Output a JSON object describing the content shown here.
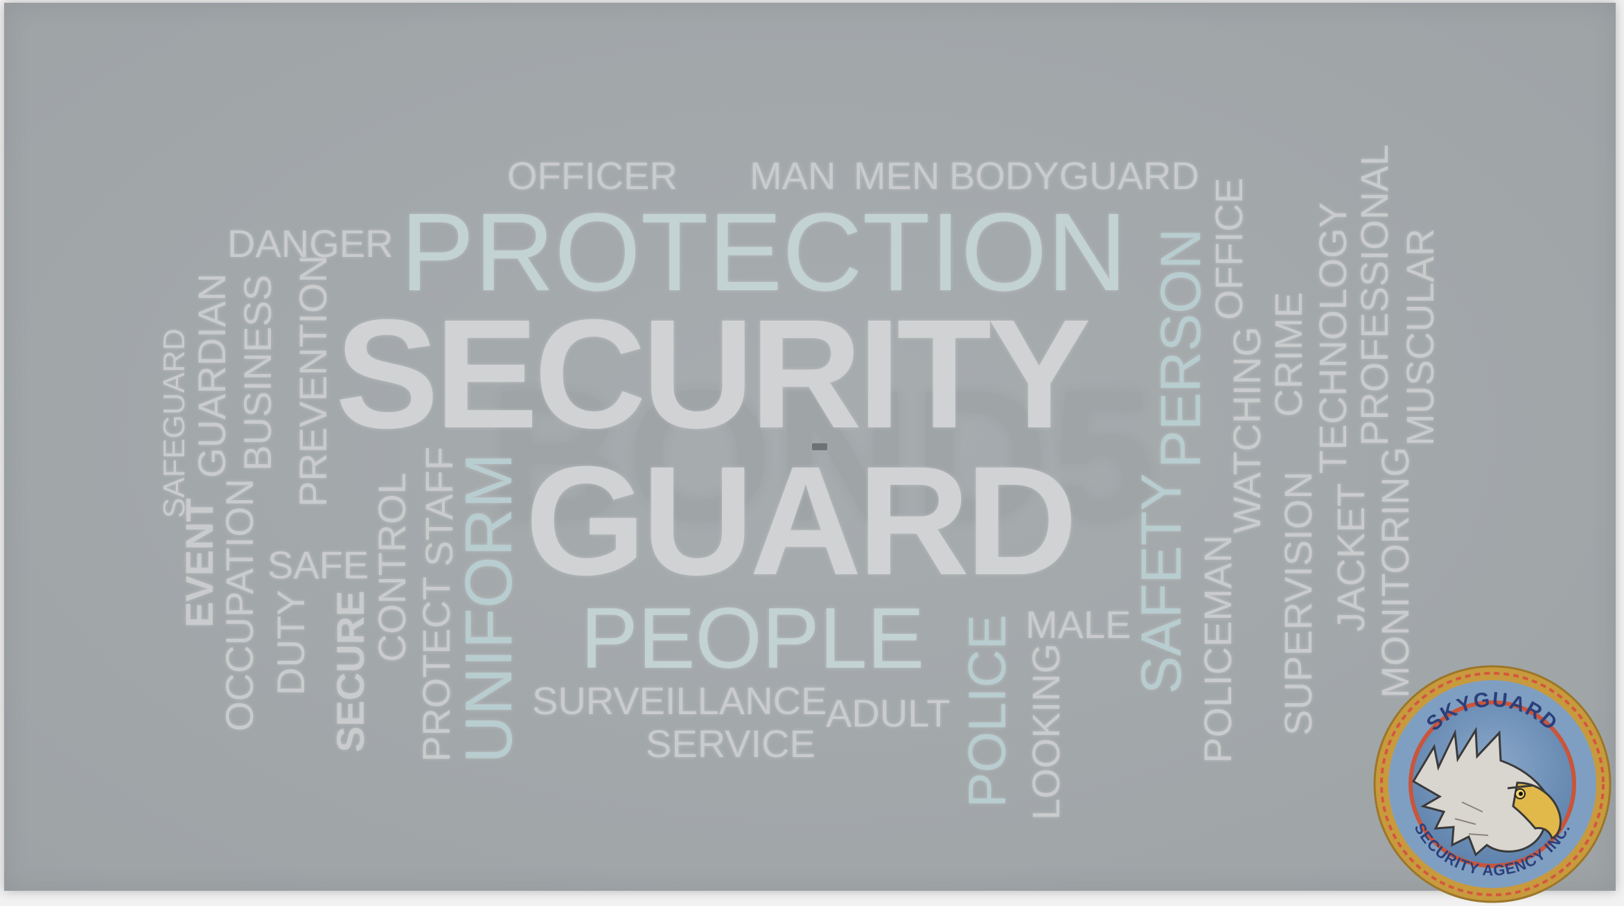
{
  "word_cloud": {
    "background_word": "BOND5",
    "words": {
      "officer": "OFFICER",
      "man": "MAN",
      "men": "MEN",
      "bodyguard": "BODYGUARD",
      "danger": "DANGER",
      "protection": "PROTECTION",
      "security": "SECURITY",
      "guard": "GUARD",
      "person": "PERSON",
      "office": "OFFICE",
      "crime": "CRIME",
      "technology": "TECHNOLOGY",
      "professional": "PROFESSIONAL",
      "muscular": "MUSCULAR",
      "watching": "WATCHING",
      "safeguard": "SAFEGUARD",
      "guardian": "GUARDIAN",
      "business": "BUSINESS",
      "prevention": "PREVENTION",
      "event": "EVENT",
      "occupation": "OCCUPATION",
      "safe": "SAFE",
      "duty": "DUTY",
      "secure": "SECURE",
      "control": "CONTROL",
      "staff": "STAFF",
      "protect": "PROTECT",
      "uniform": "UNIFORM",
      "people": "PEOPLE",
      "surveillance": "SURVEILLANCE",
      "service": "SERVICE",
      "adult": "ADULT",
      "police": "POLICE",
      "male": "MALE",
      "looking": "LOOKING",
      "safety": "SAFETY",
      "policeman": "POLICEMAN",
      "supervision": "SUPERVISION",
      "jacket": "JACKET",
      "monitoring": "MONITORING"
    }
  },
  "logo": {
    "top_text": "SKYGUARD",
    "bottom_text": "SECURITY AGENCY INC.",
    "ring_color": "#d8a23c",
    "inner_color": "#6d8fb8",
    "accent_color": "#c9553c"
  }
}
